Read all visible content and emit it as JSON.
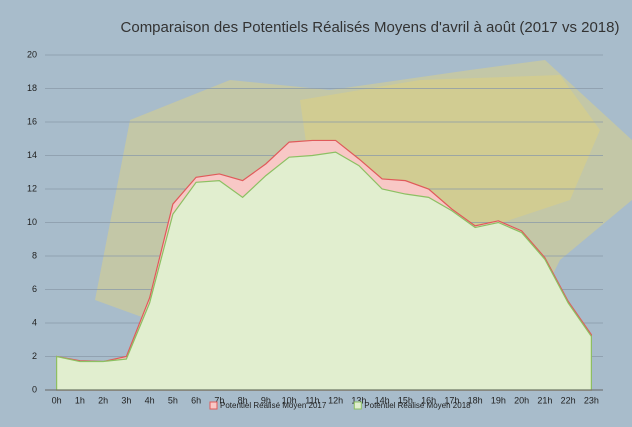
{
  "chart_data": {
    "type": "area",
    "title": "Comparaison des Potentiels Réalisés Moyens d'avril à août (2017 vs 2018)",
    "categories": [
      "0h",
      "1h",
      "2h",
      "3h",
      "4h",
      "5h",
      "6h",
      "7h",
      "8h",
      "9h",
      "10h",
      "11h",
      "12h",
      "13h",
      "14h",
      "15h",
      "16h",
      "17h",
      "18h",
      "19h",
      "20h",
      "21h",
      "22h",
      "23h"
    ],
    "series": [
      {
        "name": "Potentiel Réalisé Moyen 2017",
        "color": "#e05a5a",
        "fill": "#f8c8c6",
        "values": [
          2.0,
          1.75,
          1.7,
          2.0,
          5.5,
          11.1,
          12.7,
          12.9,
          12.5,
          13.5,
          14.8,
          14.9,
          14.9,
          13.8,
          12.6,
          12.5,
          12.0,
          10.8,
          9.8,
          10.1,
          9.5,
          7.9,
          5.3,
          3.3
        ]
      },
      {
        "name": "Potentiel Réalisé Moyen 2018",
        "color": "#8cc063",
        "fill": "#e1eecf",
        "values": [
          2.0,
          1.7,
          1.7,
          1.85,
          5.2,
          10.5,
          12.4,
          12.5,
          11.5,
          12.8,
          13.9,
          14.0,
          14.2,
          13.4,
          12.0,
          11.7,
          11.5,
          10.7,
          9.7,
          10.0,
          9.4,
          7.8,
          5.2,
          3.2
        ]
      }
    ],
    "ylim": [
      0,
      20
    ],
    "yticks": [
      0,
      2,
      4,
      6,
      8,
      10,
      12,
      14,
      16,
      18,
      20
    ],
    "grid": true
  }
}
